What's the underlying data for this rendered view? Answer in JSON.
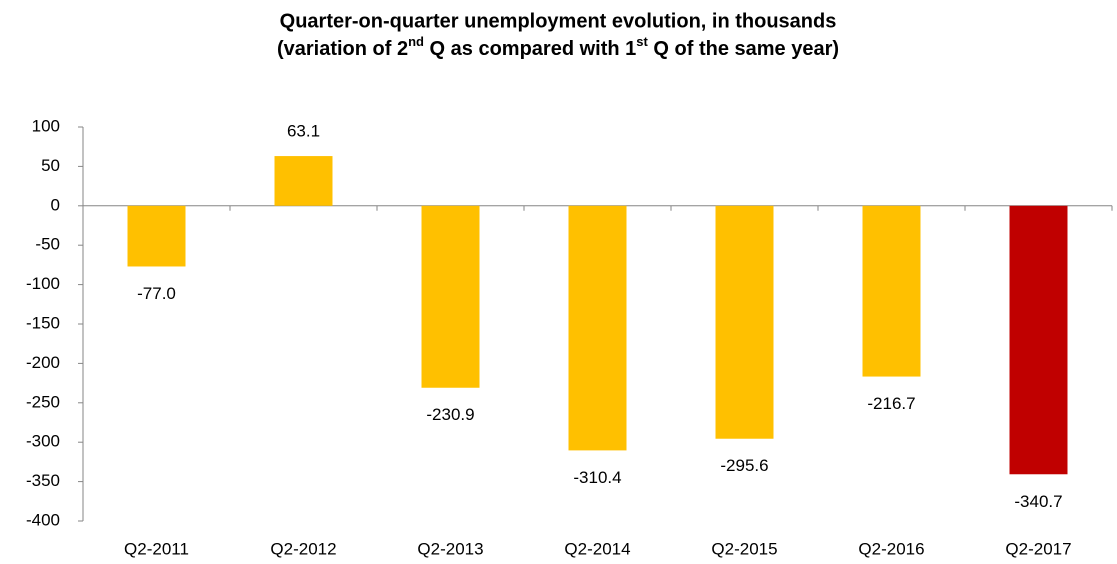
{
  "chart_data": {
    "type": "bar",
    "title": "Quarter-on-quarter unemployment evolution, in thousands",
    "subtitle": [
      "(variation of 2",
      "nd",
      " Q as compared with 1",
      "st",
      " Q of the same year)"
    ],
    "categories": [
      "Q2-2011",
      "Q2-2012",
      "Q2-2013",
      "Q2-2014",
      "Q2-2015",
      "Q2-2016",
      "Q2-2017"
    ],
    "values": [
      -77.0,
      63.1,
      -230.9,
      -310.4,
      -295.6,
      -216.7,
      -340.7
    ],
    "value_labels": [
      "-77.0",
      "63.1",
      "-230.9",
      "-310.4",
      "-295.6",
      "-216.7",
      "-340.7"
    ],
    "colors": [
      "#ffc000",
      "#ffc000",
      "#ffc000",
      "#ffc000",
      "#ffc000",
      "#ffc000",
      "#c00000"
    ],
    "ylim": [
      -400,
      100
    ],
    "yticks": [
      -400,
      -350,
      -300,
      -250,
      -200,
      -150,
      -100,
      -50,
      0,
      50,
      100
    ],
    "grid": false
  }
}
